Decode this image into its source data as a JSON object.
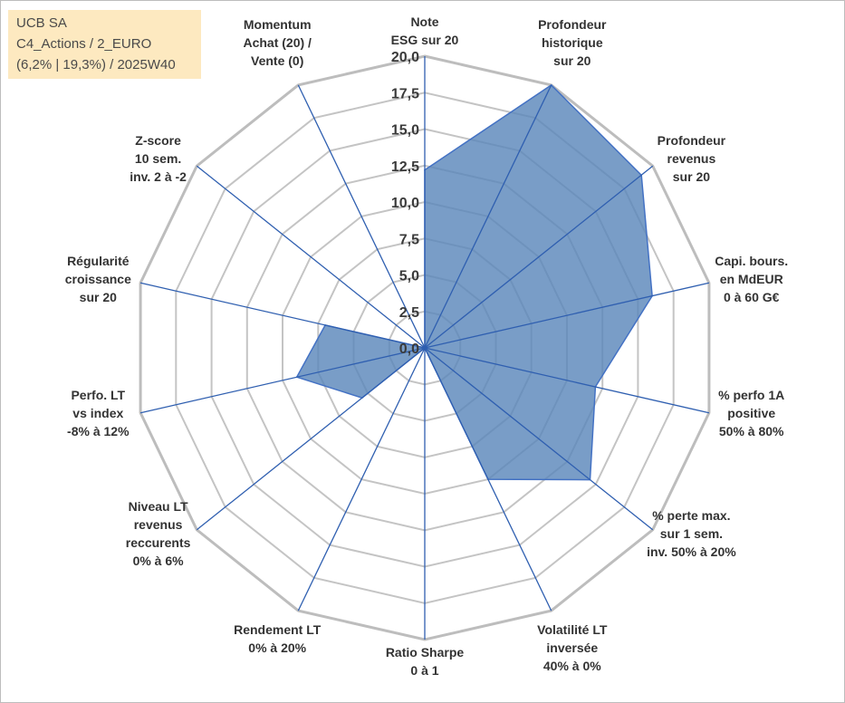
{
  "title_box": {
    "line1": "UCB SA",
    "line2": "C4_Actions / 2_EURO",
    "line3": "(6,2% | 19,3%) / 2025W40"
  },
  "chart_data": {
    "type": "radar",
    "title": "UCB SA",
    "rmin": 0,
    "rmax": 20,
    "tick_step": 2.5,
    "tick_labels": [
      "0,0",
      "2,5",
      "5,0",
      "7,5",
      "10,0",
      "12,5",
      "15,0",
      "17,5",
      "20,0"
    ],
    "axes": [
      {
        "lines": [
          "Note",
          "ESG sur 20"
        ]
      },
      {
        "lines": [
          "Profondeur",
          "historique",
          "sur 20"
        ]
      },
      {
        "lines": [
          "Profondeur",
          "revenus",
          "sur 20"
        ]
      },
      {
        "lines": [
          "Capi. bours.",
          "en MdEUR",
          "0 à 60 G€"
        ]
      },
      {
        "lines": [
          "% perfo 1A",
          "positive",
          "50% à 80%"
        ]
      },
      {
        "lines": [
          "% perte max.",
          "sur 1 sem.",
          "inv. 50% à 20%"
        ]
      },
      {
        "lines": [
          "Volatilité LT",
          "inversée",
          "40% à 0%"
        ]
      },
      {
        "lines": [
          "Ratio Sharpe",
          "0 à 1"
        ]
      },
      {
        "lines": [
          "Rendement LT",
          "0% à 20%"
        ]
      },
      {
        "lines": [
          "Niveau LT",
          "revenus",
          "reccurents",
          "0% à 6%"
        ]
      },
      {
        "lines": [
          "Perfo. LT",
          "vs index",
          "-8% à 12%"
        ]
      },
      {
        "lines": [
          "Régularité",
          "croissance",
          "sur 20"
        ]
      },
      {
        "lines": [
          "Z-score",
          "10 sem.",
          "inv. 2 à -2"
        ]
      },
      {
        "lines": [
          "Momentum",
          "Achat (20) /",
          "Vente (0)"
        ]
      }
    ],
    "series": [
      {
        "name": "UCB SA",
        "values": [
          12.2,
          20.0,
          19.0,
          16.0,
          12.0,
          14.5,
          10.0,
          0.0,
          0.0,
          5.5,
          9.0,
          7.0,
          0.0,
          0.0
        ]
      }
    ],
    "colors": {
      "fill": "#5b87bb",
      "fill_opacity": "0.82",
      "outline": "#4472c4",
      "spoke": "#2f5fb0",
      "grid": "#c4c4c4",
      "outer_grid": "#bdbdbd"
    }
  }
}
